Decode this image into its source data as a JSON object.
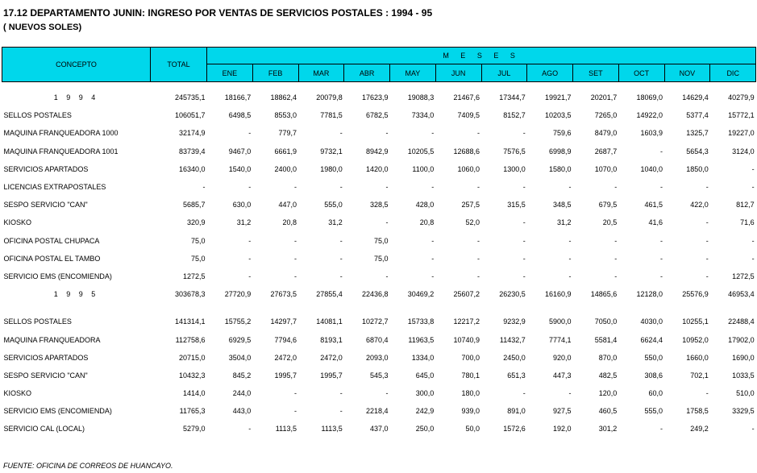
{
  "title": "17.12  DEPARTAMENTO JUNIN: INGRESO POR VENTAS DE SERVICIOS POSTALES : 1994 - 95",
  "subtitle": "( NUEVOS SOLES)",
  "header": {
    "concepto": "CONCEPTO",
    "total": "TOTAL",
    "meses": "M E S E S",
    "months": [
      "ENE",
      "FEB",
      "MAR",
      "ABR",
      "MAY",
      "JUN",
      "JUL",
      "AGO",
      "SET",
      "OCT",
      "NOV",
      "DIC"
    ]
  },
  "blocks": [
    {
      "year": {
        "label": "1 9 9 4",
        "values": [
          "245735,1",
          "18166,7",
          "18862,4",
          "20079,8",
          "17623,9",
          "19088,3",
          "21467,6",
          "17344,7",
          "19921,7",
          "20201,7",
          "18069,0",
          "14629,4",
          "40279,9"
        ]
      },
      "rows": [
        {
          "label": "SELLOS POSTALES",
          "values": [
            "106051,7",
            "6498,5",
            "8553,0",
            "7781,5",
            "6782,5",
            "7334,0",
            "7409,5",
            "8152,7",
            "10203,5",
            "7265,0",
            "14922,0",
            "5377,4",
            "15772,1"
          ]
        },
        {
          "label": "MAQUINA FRANQUEADORA 1000",
          "values": [
            "32174,9",
            "-",
            "779,7",
            "-",
            "-",
            "-",
            "-",
            "-",
            "759,6",
            "8479,0",
            "1603,9",
            "1325,7",
            "19227,0"
          ]
        },
        {
          "label": "MAQUINA FRANQUEADORA 1001",
          "values": [
            "83739,4",
            "9467,0",
            "6661,9",
            "9732,1",
            "8942,9",
            "10205,5",
            "12688,6",
            "7576,5",
            "6998,9",
            "2687,7",
            "-",
            "5654,3",
            "3124,0"
          ]
        },
        {
          "label": "SERVICIOS APARTADOS",
          "values": [
            "16340,0",
            "1540,0",
            "2400,0",
            "1980,0",
            "1420,0",
            "1100,0",
            "1060,0",
            "1300,0",
            "1580,0",
            "1070,0",
            "1040,0",
            "1850,0",
            "-"
          ]
        },
        {
          "label": "LICENCIAS EXTRAPOSTALES",
          "values": [
            "-",
            "-",
            "-",
            "-",
            "-",
            "-",
            "-",
            "-",
            "-",
            "-",
            "-",
            "-",
            "-"
          ]
        },
        {
          "label": "SESPO SERVICIO \"CAN\"",
          "values": [
            "5685,7",
            "630,0",
            "447,0",
            "555,0",
            "328,5",
            "428,0",
            "257,5",
            "315,5",
            "348,5",
            "679,5",
            "461,5",
            "422,0",
            "812,7"
          ]
        },
        {
          "label": "KIOSKO",
          "values": [
            "320,9",
            "31,2",
            "20,8",
            "31,2",
            "-",
            "20,8",
            "52,0",
            "-",
            "31,2",
            "20,5",
            "41,6",
            "-",
            "71,6"
          ]
        },
        {
          "label": "OFICINA POSTAL CHUPACA",
          "values": [
            "75,0",
            "-",
            "-",
            "-",
            "75,0",
            "-",
            "-",
            "-",
            "-",
            "-",
            "-",
            "-",
            "-"
          ]
        },
        {
          "label": "OFICINA POSTAL EL TAMBO",
          "values": [
            "75,0",
            "-",
            "-",
            "-",
            "75,0",
            "-",
            "-",
            "-",
            "-",
            "-",
            "-",
            "-",
            "-"
          ]
        },
        {
          "label": "SERVICIO EMS (ENCOMIENDA)",
          "values": [
            "1272,5",
            "-",
            "-",
            "-",
            "-",
            "-",
            "-",
            "-",
            "-",
            "-",
            "-",
            "-",
            "1272,5"
          ]
        }
      ]
    },
    {
      "year": {
        "label": "1 9 9 5",
        "values": [
          "303678,3",
          "27720,9",
          "27673,5",
          "27855,4",
          "22436,8",
          "30469,2",
          "25607,2",
          "26230,5",
          "16160,9",
          "14865,6",
          "12128,0",
          "25576,9",
          "46953,4"
        ]
      },
      "rows": [
        {
          "label": "SELLOS POSTALES",
          "values": [
            "141314,1",
            "15755,2",
            "14297,7",
            "14081,1",
            "10272,7",
            "15733,8",
            "12217,2",
            "9232,9",
            "5900,0",
            "7050,0",
            "4030,0",
            "10255,1",
            "22488,4"
          ]
        },
        {
          "label": "MAQUINA FRANQUEADORA",
          "values": [
            "112758,6",
            "6929,5",
            "7794,6",
            "8193,1",
            "6870,4",
            "11963,5",
            "10740,9",
            "11432,7",
            "7774,1",
            "5581,4",
            "6624,4",
            "10952,0",
            "17902,0"
          ]
        },
        {
          "label": "SERVICIOS APARTADOS",
          "values": [
            "20715,0",
            "3504,0",
            "2472,0",
            "2472,0",
            "2093,0",
            "1334,0",
            "700,0",
            "2450,0",
            "920,0",
            "870,0",
            "550,0",
            "1660,0",
            "1690,0"
          ]
        },
        {
          "label": "SESPO SERVICIO \"CAN\"",
          "values": [
            "10432,3",
            "845,2",
            "1995,7",
            "1995,7",
            "545,3",
            "645,0",
            "780,1",
            "651,3",
            "447,3",
            "482,5",
            "308,6",
            "702,1",
            "1033,5"
          ]
        },
        {
          "label": "KIOSKO",
          "values": [
            "1414,0",
            "244,0",
            "-",
            "-",
            "-",
            "300,0",
            "180,0",
            "-",
            "-",
            "120,0",
            "60,0",
            "-",
            "510,0"
          ]
        },
        {
          "label": "SERVICIO EMS (ENCOMIENDA)",
          "values": [
            "11765,3",
            "443,0",
            "-",
            "-",
            "2218,4",
            "242,9",
            "939,0",
            "891,0",
            "927,5",
            "460,5",
            "555,0",
            "1758,5",
            "3329,5"
          ]
        },
        {
          "label": "SERVICIO CAL (LOCAL)",
          "values": [
            "5279,0",
            "-",
            "1113,5",
            "1113,5",
            "437,0",
            "250,0",
            "50,0",
            "1572,6",
            "192,0",
            "301,2",
            "-",
            "249,2",
            "-"
          ]
        }
      ]
    }
  ],
  "footer": "FUENTE: OFICINA DE CORREOS DE HUANCAYO."
}
